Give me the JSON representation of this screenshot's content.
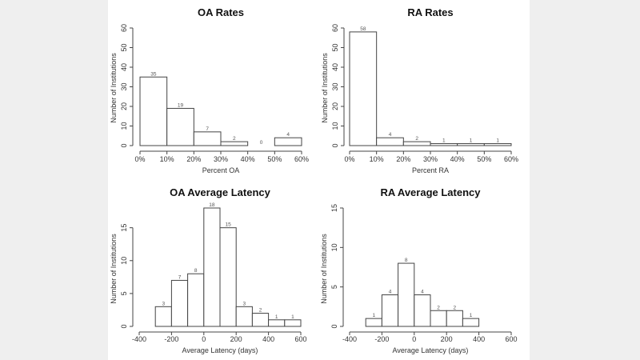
{
  "chart_data": [
    {
      "type": "bar",
      "title": "OA Rates",
      "xlabel": "Percent OA",
      "ylabel": "Number of Institutions",
      "bin_edges": [
        0,
        10,
        20,
        30,
        40,
        50,
        60
      ],
      "values": [
        35,
        19,
        7,
        2,
        0,
        4
      ],
      "data_labels": [
        "35",
        "19",
        "7",
        "2",
        "0",
        "4"
      ],
      "xlim": [
        0,
        60
      ],
      "ylim": [
        0,
        60
      ],
      "xticks": [
        "0%",
        "10%",
        "20%",
        "30%",
        "40%",
        "50%",
        "60%"
      ],
      "xtick_values": [
        0,
        10,
        20,
        30,
        40,
        50,
        60
      ],
      "yticks": [
        "0",
        "10",
        "20",
        "30",
        "40",
        "50",
        "60"
      ],
      "ytick_values": [
        0,
        10,
        20,
        30,
        40,
        50,
        60
      ],
      "grid": false
    },
    {
      "type": "bar",
      "title": "RA Rates",
      "xlabel": "Percent RA",
      "ylabel": "Number of Institutions",
      "bin_edges": [
        0,
        10,
        20,
        30,
        40,
        50,
        60
      ],
      "values": [
        58,
        4,
        2,
        1,
        1,
        1
      ],
      "data_labels": [
        "58",
        "4",
        "2",
        "1",
        "1",
        "1"
      ],
      "xlim": [
        0,
        60
      ],
      "ylim": [
        0,
        60
      ],
      "xticks": [
        "0%",
        "10%",
        "20%",
        "30%",
        "40%",
        "50%",
        "60%"
      ],
      "xtick_values": [
        0,
        10,
        20,
        30,
        40,
        50,
        60
      ],
      "yticks": [
        "0",
        "10",
        "20",
        "30",
        "40",
        "50",
        "60"
      ],
      "ytick_values": [
        0,
        10,
        20,
        30,
        40,
        50,
        60
      ],
      "grid": false
    },
    {
      "type": "bar",
      "title": "OA Average Latency",
      "xlabel": "Average Latency (days)",
      "ylabel": "Number of Institutions",
      "bin_edges": [
        -300,
        -200,
        -100,
        0,
        100,
        200,
        300,
        400,
        500,
        600
      ],
      "values": [
        3,
        7,
        8,
        18,
        15,
        3,
        2,
        1,
        1
      ],
      "data_labels": [
        "3",
        "7",
        "8",
        "18",
        "15",
        "3",
        "2",
        "1",
        "1"
      ],
      "xlim": [
        -400,
        600
      ],
      "ylim": [
        0,
        18
      ],
      "xticks": [
        "-400",
        "-200",
        "0",
        "200",
        "400",
        "600"
      ],
      "xtick_values": [
        -400,
        -200,
        0,
        200,
        400,
        600
      ],
      "yticks": [
        "0",
        "5",
        "10",
        "15"
      ],
      "ytick_values": [
        0,
        5,
        10,
        15
      ],
      "grid": false
    },
    {
      "type": "bar",
      "title": "RA Average Latency",
      "xlabel": "Average Latency (days)",
      "ylabel": "Number of Institutions",
      "bin_edges": [
        -300,
        -200,
        -100,
        0,
        100,
        200,
        300,
        400
      ],
      "values": [
        1,
        4,
        8,
        4,
        2,
        2,
        1
      ],
      "data_labels": [
        "1",
        "4",
        "8",
        "4",
        "2",
        "2",
        "1"
      ],
      "xlim": [
        -400,
        600
      ],
      "ylim": [
        0,
        15
      ],
      "xticks": [
        "-400",
        "-200",
        "0",
        "200",
        "400",
        "600"
      ],
      "xtick_values": [
        -400,
        -200,
        0,
        200,
        400,
        600
      ],
      "yticks": [
        "0",
        "5",
        "10",
        "15"
      ],
      "ytick_values": [
        0,
        5,
        10,
        15
      ],
      "grid": false
    }
  ]
}
